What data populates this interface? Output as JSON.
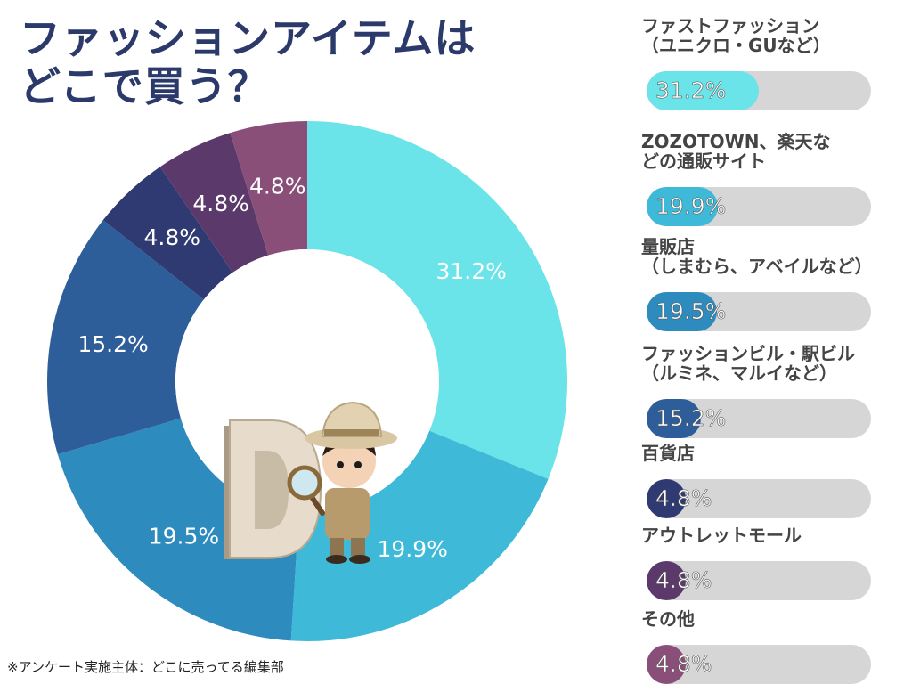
{
  "title": {
    "line1": "ファッションアイテムは",
    "line2": "どこで買う？"
  },
  "footnote": "※アンケート実施主体：どこに売ってる編集部",
  "chart_data": {
    "type": "pie",
    "title": "ファッションアイテムはどこで買う？",
    "unit": "%",
    "slices": [
      {
        "label": "ファストファッション（ユニクロ・GUなど）",
        "label_lines": [
          "ファストファッション",
          "（ユニクロ・GUなど）"
        ],
        "value": 31.2,
        "display": "31.2%",
        "color": "#6ae3e9"
      },
      {
        "label": "ZOZOTOWN、楽天などの通販サイト",
        "label_lines": [
          "ZOZOTOWN、楽天な",
          "どの通販サイト"
        ],
        "value": 19.9,
        "display": "19.9%",
        "color": "#3fb9d8"
      },
      {
        "label": "量販店（しまむら、アベイルなど）",
        "label_lines": [
          "量販店",
          "（しまむら、アベイルなど）"
        ],
        "value": 19.5,
        "display": "19.5%",
        "color": "#2d8bbd"
      },
      {
        "label": "ファッションビル・駅ビル（ルミネ、マルイなど）",
        "label_lines": [
          "ファッションビル・駅ビル",
          "（ルミネ、マルイなど）"
        ],
        "value": 15.2,
        "display": "15.2%",
        "color": "#2e5e9a"
      },
      {
        "label": "百貨店",
        "label_lines": [
          "百貨店"
        ],
        "value": 4.8,
        "display": "4.8%",
        "color": "#2f3a72"
      },
      {
        "label": "アウトレットモール",
        "label_lines": [
          "アウトレットモール"
        ],
        "value": 4.8,
        "display": "4.8%",
        "color": "#5b3a6b"
      },
      {
        "label": "その他",
        "label_lines": [
          "その他"
        ],
        "value": 4.8,
        "display": "4.8%",
        "color": "#8a4f78"
      }
    ]
  },
  "center_image": {
    "icon": "explorer-mascot-with-letter-d",
    "letter": "D"
  }
}
